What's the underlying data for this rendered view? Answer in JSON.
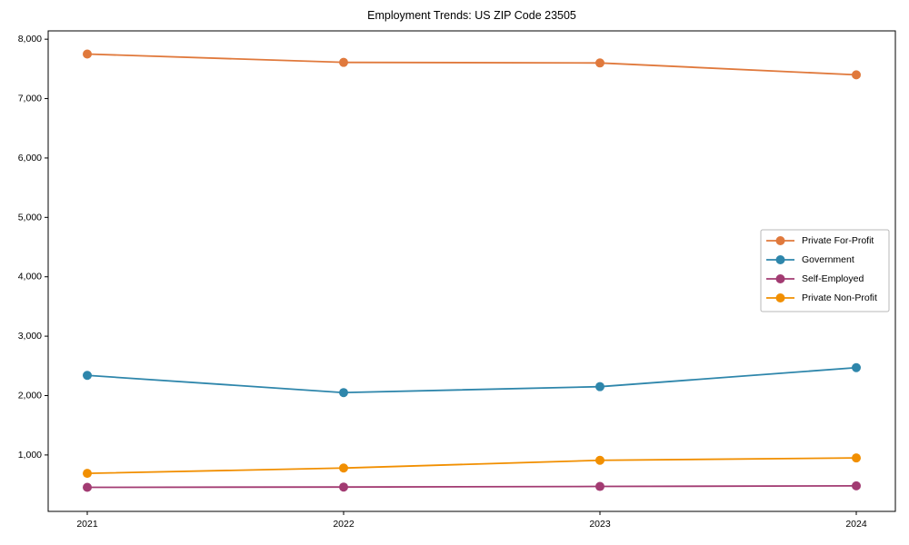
{
  "chart_data": {
    "type": "line",
    "title": "Employment Trends: US ZIP Code 23505",
    "xlabel": "",
    "ylabel": "",
    "categories": [
      "2021",
      "2022",
      "2023",
      "2024"
    ],
    "series": [
      {
        "name": "Private For-Profit",
        "color": "#E0793C",
        "values": [
          7750,
          7610,
          7600,
          7400
        ]
      },
      {
        "name": "Government",
        "color": "#2E86AB",
        "values": [
          2340,
          2050,
          2150,
          2470
        ]
      },
      {
        "name": "Self-Employed",
        "color": "#A23B72",
        "values": [
          455,
          460,
          470,
          480
        ]
      },
      {
        "name": "Private Non-Profit",
        "color": "#F18F01",
        "values": [
          690,
          780,
          910,
          950
        ]
      }
    ],
    "yticks": [
      1000,
      2000,
      3000,
      4000,
      5000,
      6000,
      7000,
      8000
    ],
    "ytick_labels": [
      "1,000",
      "2,000",
      "3,000",
      "4,000",
      "5,000",
      "6,000",
      "7,000",
      "8,000"
    ],
    "ylim": [
      50,
      8140
    ],
    "grid": false,
    "legend": {
      "position": "center-right",
      "entries": [
        "Private For-Profit",
        "Government",
        "Self-Employed",
        "Private Non-Profit"
      ]
    },
    "style": {
      "spine_color": "#000000",
      "legend_border_color": "#b8b8b8",
      "marker_radius": 5,
      "line_width": 1.8
    }
  }
}
